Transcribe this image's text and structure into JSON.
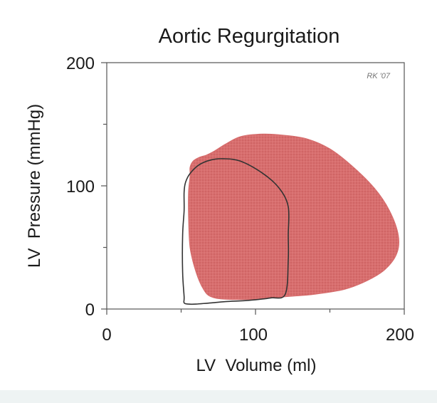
{
  "chart_data": {
    "type": "area",
    "title": "Aortic Regurgitation",
    "xlabel": "LV  Volume (ml)",
    "ylabel": "LV  Pressure (mmHg)",
    "xlim": [
      0,
      200
    ],
    "ylim": [
      0,
      200
    ],
    "xticks": [
      "0",
      "100",
      "200"
    ],
    "yticks": [
      "0",
      "100",
      "200"
    ],
    "grid": false,
    "annotation": "RK '07",
    "series": [
      {
        "style": "filled loop",
        "color": "#d66b6b",
        "x": [
          55,
          56,
          56,
          58,
          62,
          67,
          72,
          80,
          90,
          105,
          120,
          135,
          150,
          165,
          180,
          190,
          196,
          195,
          187,
          175,
          160,
          140,
          120,
          100,
          80,
          70,
          65,
          60,
          56,
          55
        ],
        "y": [
          95,
          108,
          115,
          120,
          123,
          125,
          128,
          134,
          140,
          142,
          141,
          138,
          130,
          116,
          98,
          80,
          60,
          45,
          32,
          23,
          16,
          12,
          10,
          8,
          8,
          10,
          16,
          30,
          50,
          75
        ]
      },
      {
        "style": "outline loop",
        "color": "#333333",
        "x": [
          52,
          52,
          53,
          56,
          62,
          70,
          78,
          90,
          105,
          116,
          122,
          122,
          122,
          120,
          110,
          95,
          80,
          70,
          60,
          55,
          52,
          52,
          51,
          51
        ],
        "y": [
          80,
          95,
          103,
          110,
          117,
          121,
          122,
          120,
          110,
          98,
          83,
          60,
          40,
          12,
          9,
          7,
          6,
          5,
          4,
          4,
          5,
          10,
          30,
          60
        ]
      }
    ]
  }
}
